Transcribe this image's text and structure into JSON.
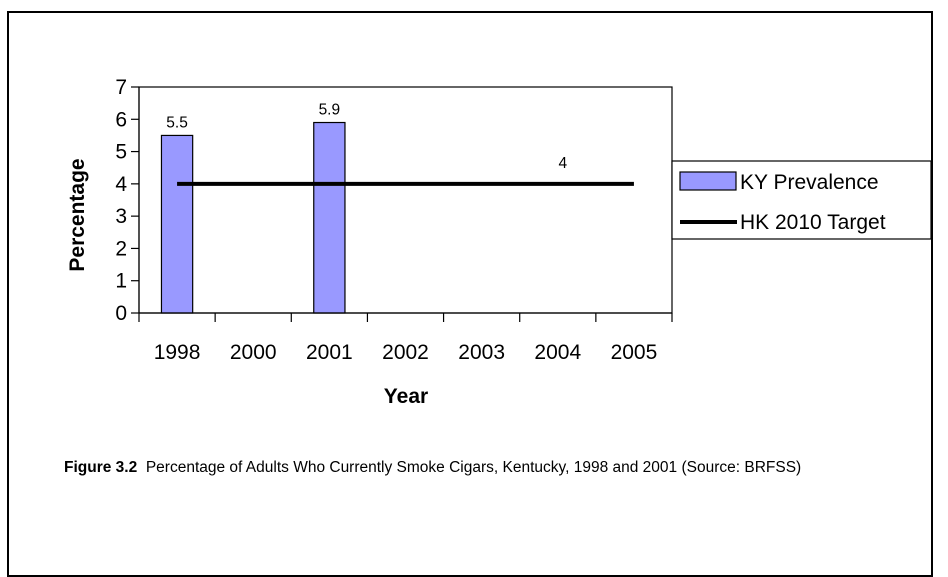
{
  "chart_data": {
    "type": "bar",
    "categories": [
      "1998",
      "2000",
      "2001",
      "2002",
      "2003",
      "2004",
      "2005"
    ],
    "series": [
      {
        "name": "KY Prevalence",
        "type": "bar",
        "values": [
          5.5,
          null,
          5.9,
          null,
          null,
          null,
          null
        ],
        "color": "#9999ff"
      },
      {
        "name": "HK 2010 Target",
        "type": "line",
        "values": [
          4,
          4,
          4,
          4,
          4,
          4,
          4
        ],
        "color": "#000000"
      }
    ],
    "data_labels": {
      "bar": [
        "5.5",
        "5.9"
      ],
      "target": "4"
    },
    "xlabel": "Year",
    "ylabel": "Percentage",
    "ylim": [
      0,
      7
    ],
    "yticks": [
      0,
      1,
      2,
      3,
      4,
      5,
      6,
      7
    ],
    "grid": false,
    "legend": "right"
  },
  "caption": {
    "label": "Figure 3.2",
    "text": "Percentage of Adults Who Currently Smoke Cigars, Kentucky, 1998 and 2001 (Source:  BRFSS)"
  }
}
